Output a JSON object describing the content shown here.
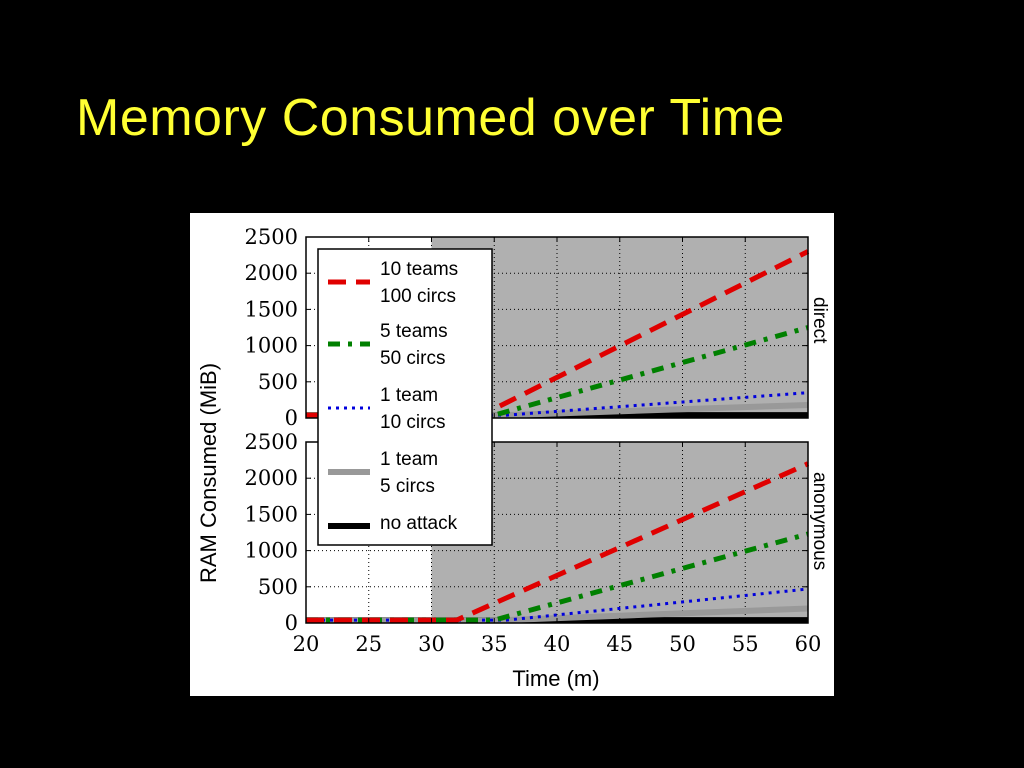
{
  "slide": {
    "title": "Memory Consumed over Time",
    "title_color": "#ffff33",
    "background": "#000000"
  },
  "chart_data": {
    "type": "line",
    "xlabel": "Time (m)",
    "ylabel": "RAM Consumed (MiB)",
    "xlim": [
      20,
      60
    ],
    "ylim": [
      0,
      2500
    ],
    "xticks": [
      20,
      25,
      30,
      35,
      40,
      45,
      50,
      55,
      60
    ],
    "yticks": [
      0,
      500,
      1000,
      1500,
      2000,
      2500
    ],
    "grid": true,
    "attack_region": {
      "from_x": 30,
      "to_x": 60,
      "color": "#b0b0b0"
    },
    "legend_position": "upper-left",
    "legend": [
      {
        "key": "s10t",
        "lines": [
          "10 teams",
          "100 circs"
        ],
        "color": "#e00000",
        "style": "dashed"
      },
      {
        "key": "s5t",
        "lines": [
          "5 teams",
          "50 circs"
        ],
        "color": "#008000",
        "style": "dash-dot"
      },
      {
        "key": "s1t10",
        "lines": [
          "1 team",
          "10 circs"
        ],
        "color": "#0000dd",
        "style": "dotted"
      },
      {
        "key": "s1t5",
        "lines": [
          "1 team",
          "5 circs"
        ],
        "color": "#999999",
        "style": "solid-thick"
      },
      {
        "key": "snone",
        "lines": [
          "no attack"
        ],
        "color": "#000000",
        "style": "solid-thick"
      }
    ],
    "panels": [
      {
        "label": "direct",
        "series": [
          {
            "key": "s10t",
            "x": [
              20,
              34,
              60
            ],
            "y": [
              40,
              40,
              2300
            ]
          },
          {
            "key": "s5t",
            "x": [
              20,
              35,
              60
            ],
            "y": [
              40,
              40,
              1250
            ]
          },
          {
            "key": "s1t10",
            "x": [
              20,
              36,
              60
            ],
            "y": [
              40,
              40,
              350
            ]
          },
          {
            "key": "s1t5",
            "x": [
              20,
              36,
              60
            ],
            "y": [
              40,
              40,
              180
            ]
          },
          {
            "key": "snone",
            "x": [
              20,
              60
            ],
            "y": [
              40,
              40
            ]
          }
        ]
      },
      {
        "label": "anonymous",
        "series": [
          {
            "key": "s10t",
            "x": [
              20,
              32,
              60
            ],
            "y": [
              40,
              40,
              2200
            ]
          },
          {
            "key": "s5t",
            "x": [
              20,
              35,
              60
            ],
            "y": [
              40,
              40,
              1230
            ]
          },
          {
            "key": "s1t10",
            "x": [
              20,
              36,
              60
            ],
            "y": [
              40,
              40,
              470
            ]
          },
          {
            "key": "s1t5",
            "x": [
              20,
              36,
              60
            ],
            "y": [
              40,
              40,
              200
            ]
          },
          {
            "key": "snone",
            "x": [
              20,
              60
            ],
            "y": [
              40,
              40
            ]
          }
        ]
      }
    ]
  }
}
